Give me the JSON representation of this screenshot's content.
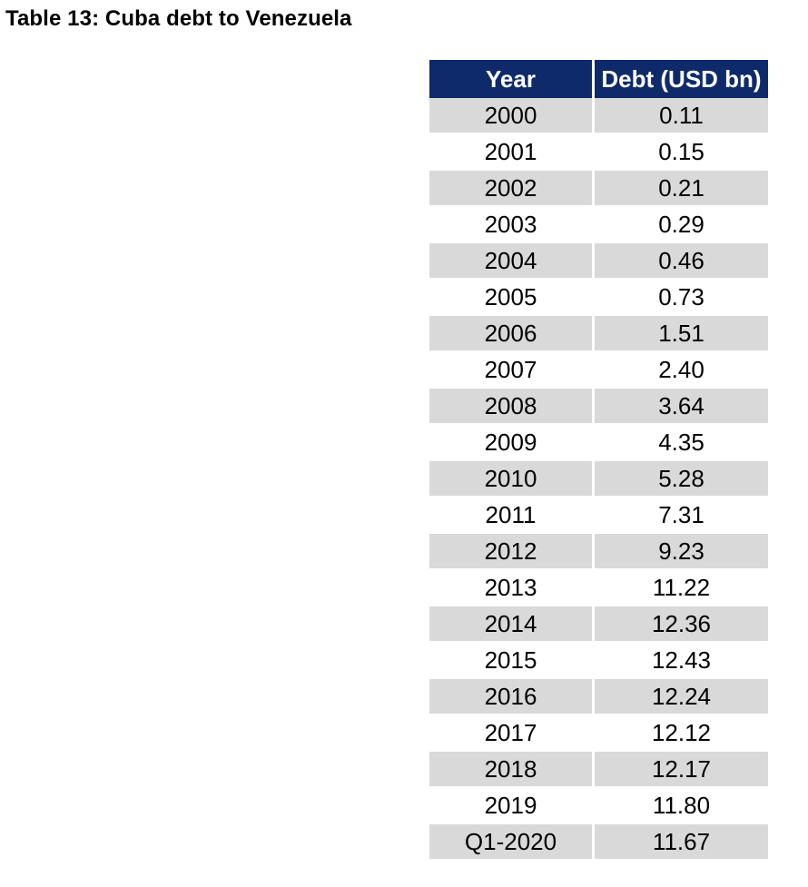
{
  "title": "Table 13: Cuba debt to Venezuela",
  "table": {
    "headers": [
      "Year",
      "Debt (USD bn)"
    ],
    "rows": [
      [
        "2000",
        "0.11"
      ],
      [
        "2001",
        "0.15"
      ],
      [
        "2002",
        "0.21"
      ],
      [
        "2003",
        "0.29"
      ],
      [
        "2004",
        "0.46"
      ],
      [
        "2005",
        "0.73"
      ],
      [
        "2006",
        "1.51"
      ],
      [
        "2007",
        "2.40"
      ],
      [
        "2008",
        "3.64"
      ],
      [
        "2009",
        "4.35"
      ],
      [
        "2010",
        "5.28"
      ],
      [
        "2011",
        "7.31"
      ],
      [
        "2012",
        "9.23"
      ],
      [
        "2013",
        "11.22"
      ],
      [
        "2014",
        "12.36"
      ],
      [
        "2015",
        "12.43"
      ],
      [
        "2016",
        "12.24"
      ],
      [
        "2017",
        "12.12"
      ],
      [
        "2018",
        "12.17"
      ],
      [
        "2019",
        "11.80"
      ],
      [
        "Q1-2020",
        "11.67"
      ]
    ]
  },
  "colors": {
    "header_background": "#0e2a6b",
    "header_text": "#ffffff",
    "stripe_row": "#d9d9d9",
    "plain_row": "#ffffff"
  }
}
